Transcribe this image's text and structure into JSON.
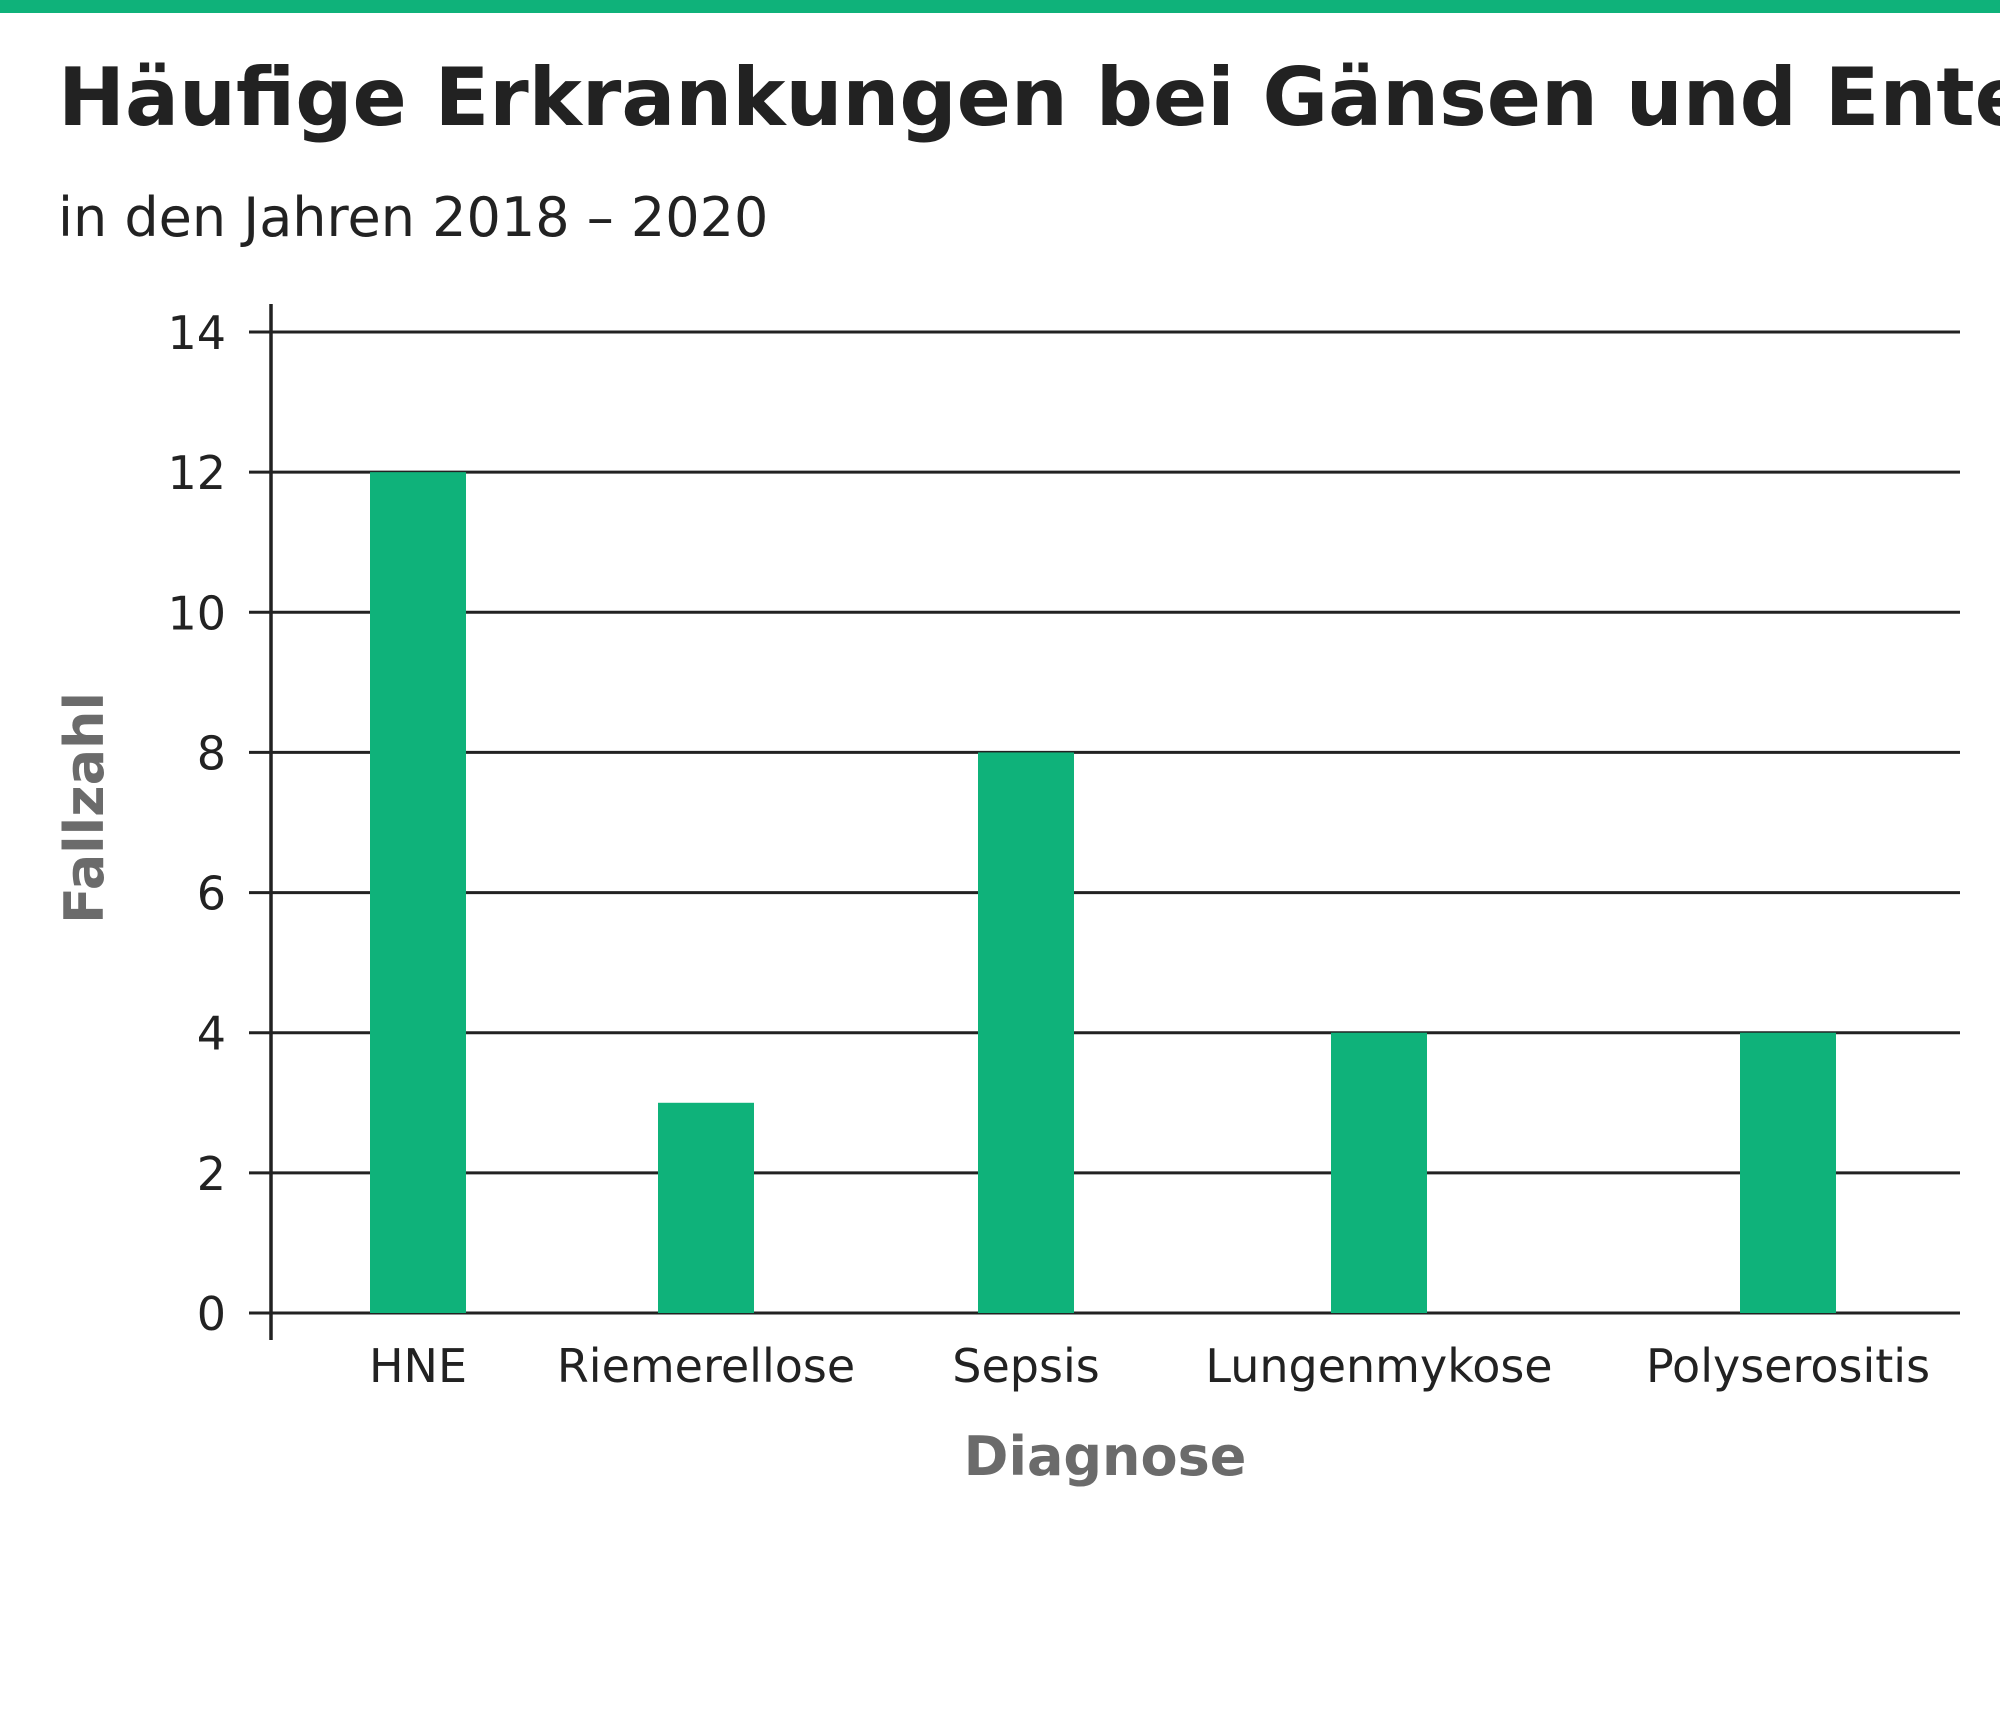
{
  "header": {
    "title": "Häufige Erkrankungen bei Gänsen und Enten",
    "subtitle": "in den Jahren 2018 – 2020"
  },
  "colors": {
    "accent": "#0fb27a",
    "text": "#222222",
    "axis_title": "#6b6b6b",
    "grid": "#222222"
  },
  "chart_data": {
    "type": "bar",
    "title": "Häufige Erkrankungen bei Gänsen und Enten",
    "subtitle": "in den Jahren 2018 – 2020",
    "categories": [
      "HNE",
      "Riemerellose",
      "Sepsis",
      "Lungenmykose",
      "Polyserositis"
    ],
    "values": [
      12,
      3,
      8,
      4,
      4
    ],
    "xlabel": "Diagnose",
    "ylabel": "Fallzahl",
    "ylim": [
      0,
      14
    ],
    "yticks": [
      0,
      2,
      4,
      6,
      8,
      10,
      12,
      14
    ],
    "grid": true,
    "legend": false
  }
}
